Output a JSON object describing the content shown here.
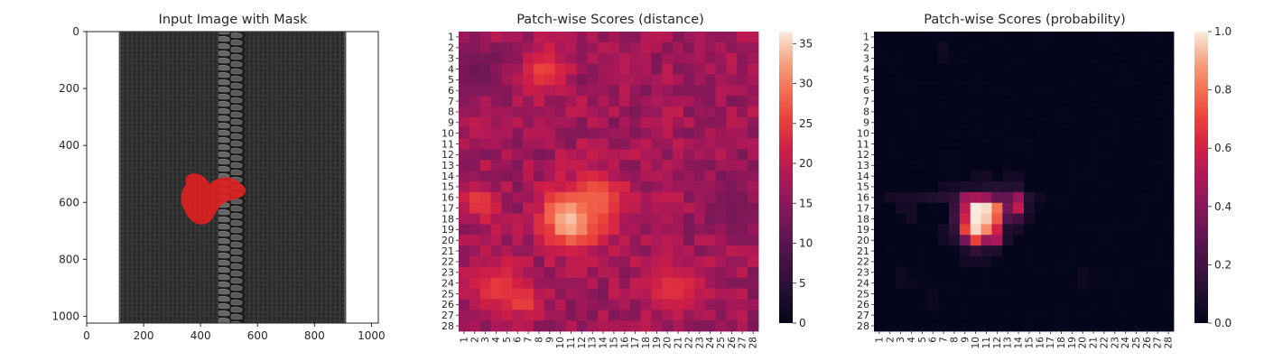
{
  "figure": {
    "panels": [
      {
        "title": "Input Image with Mask"
      },
      {
        "title": "Patch-wise Scores (distance)"
      },
      {
        "title": "Patch-wise Scores (probability)"
      }
    ]
  },
  "chart_data": [
    {
      "type": "image",
      "title": "Input Image with Mask",
      "xlabel": "",
      "ylabel": "",
      "xlim": [
        0,
        1024
      ],
      "ylim": [
        1024,
        0
      ],
      "x_ticks": [
        0,
        200,
        400,
        600,
        800,
        1000
      ],
      "y_ticks": [
        0,
        200,
        400,
        600,
        800,
        1000
      ],
      "image": {
        "content": "zipper on dark fabric, white background",
        "fabric_x_range": [
          115,
          910
        ],
        "zipper_x_range": [
          440,
          560
        ],
        "mask_color": "#e02020",
        "mask_approx_x_range": [
          335,
          560
        ],
        "mask_approx_y_range": [
          490,
          670
        ]
      }
    },
    {
      "type": "heatmap",
      "title": "Patch-wise Scores (distance)",
      "xlabel": "",
      "ylabel": "",
      "x_ticks": [
        "1",
        "2",
        "3",
        "4",
        "5",
        "6",
        "7",
        "8",
        "9",
        "10",
        "11",
        "12",
        "13",
        "14",
        "15",
        "16",
        "17",
        "18",
        "19",
        "20",
        "21",
        "22",
        "23",
        "24",
        "25",
        "26",
        "27",
        "28"
      ],
      "y_ticks": [
        "1",
        "2",
        "3",
        "4",
        "5",
        "6",
        "7",
        "8",
        "9",
        "10",
        "11",
        "12",
        "13",
        "14",
        "15",
        "16",
        "17",
        "18",
        "19",
        "20",
        "21",
        "22",
        "23",
        "24",
        "25",
        "26",
        "27",
        "28"
      ],
      "colormap": "rocket",
      "colorbar": {
        "range": [
          0,
          36.5
        ],
        "ticks": [
          "0",
          "5",
          "10",
          "15",
          "20",
          "25",
          "30",
          "35"
        ]
      },
      "grid_size": [
        28,
        28
      ],
      "baseline": 17,
      "hotspots": [
        {
          "cx": 11,
          "cy": 18,
          "r": 2.6,
          "value": 36.5,
          "note": "peak ~35-37 around rows 17-19, cols 10-11"
        },
        {
          "cx": 13.5,
          "cy": 16.3,
          "r": 2.6,
          "value": 28,
          "note": "rows 15-17, cols 12-15"
        },
        {
          "cx": 2.5,
          "cy": 16.5,
          "r": 1.6,
          "value": 26,
          "note": "left band rows 15-18"
        },
        {
          "cx": 8.5,
          "cy": 4,
          "r": 1.8,
          "value": 26,
          "note": "top rows 2-5, cols 6-10"
        },
        {
          "cx": 4,
          "cy": 24.5,
          "r": 2.3,
          "value": 25,
          "note": "bottom-left rows 23-26"
        },
        {
          "cx": 6.5,
          "cy": 25.8,
          "r": 1.2,
          "value": 27,
          "note": "rows 25-26, col 6-7"
        },
        {
          "cx": 20.5,
          "cy": 24.5,
          "r": 2.5,
          "value": 24,
          "note": "bottom-right rows 23-26, cols 19-22"
        },
        {
          "cx": 2,
          "cy": 4,
          "r": 2.4,
          "value": 12,
          "note": "darker top-left edge"
        },
        {
          "cx": 26,
          "cy": 17,
          "r": 2.5,
          "value": 13,
          "note": "darker right edge"
        }
      ]
    },
    {
      "type": "heatmap",
      "title": "Patch-wise Scores (probability)",
      "xlabel": "",
      "ylabel": "",
      "x_ticks": [
        "1",
        "2",
        "3",
        "4",
        "5",
        "6",
        "7",
        "8",
        "9",
        "10",
        "11",
        "12",
        "13",
        "14",
        "15",
        "16",
        "17",
        "18",
        "19",
        "20",
        "21",
        "22",
        "23",
        "24",
        "25",
        "26",
        "27",
        "28"
      ],
      "y_ticks": [
        "1",
        "2",
        "3",
        "4",
        "5",
        "6",
        "7",
        "8",
        "9",
        "10",
        "11",
        "12",
        "13",
        "14",
        "15",
        "16",
        "17",
        "18",
        "19",
        "20",
        "21",
        "22",
        "23",
        "24",
        "25",
        "26",
        "27",
        "28"
      ],
      "colormap": "rocket",
      "colorbar": {
        "range": [
          0,
          1.0
        ],
        "ticks": [
          "0.0",
          "0.2",
          "0.4",
          "0.6",
          "0.8",
          "1.0"
        ]
      },
      "grid_size": [
        28,
        28
      ],
      "cells": [
        {
          "row": 17,
          "col": 10,
          "value": 1.0
        },
        {
          "row": 17,
          "col": 11,
          "value": 0.98
        },
        {
          "row": 18,
          "col": 10,
          "value": 1.0
        },
        {
          "row": 18,
          "col": 11,
          "value": 0.95
        },
        {
          "row": 19,
          "col": 10,
          "value": 0.97
        },
        {
          "row": 17,
          "col": 12,
          "value": 0.8
        },
        {
          "row": 18,
          "col": 12,
          "value": 0.75
        },
        {
          "row": 19,
          "col": 11,
          "value": 0.85
        },
        {
          "row": 19,
          "col": 12,
          "value": 0.6
        },
        {
          "row": 16,
          "col": 10,
          "value": 0.5
        },
        {
          "row": 16,
          "col": 11,
          "value": 0.45
        },
        {
          "row": 16,
          "col": 12,
          "value": 0.3
        },
        {
          "row": 16,
          "col": 9,
          "value": 0.45
        },
        {
          "row": 17,
          "col": 9,
          "value": 0.55
        },
        {
          "row": 18,
          "col": 9,
          "value": 0.6
        },
        {
          "row": 19,
          "col": 9,
          "value": 0.7
        },
        {
          "row": 20,
          "col": 9,
          "value": 0.35
        },
        {
          "row": 20,
          "col": 10,
          "value": 0.7
        },
        {
          "row": 20,
          "col": 11,
          "value": 0.45
        },
        {
          "row": 20,
          "col": 12,
          "value": 0.5
        },
        {
          "row": 17,
          "col": 14,
          "value": 0.55
        },
        {
          "row": 16,
          "col": 14,
          "value": 0.45
        },
        {
          "row": 17,
          "col": 13,
          "value": 0.35
        },
        {
          "row": 16,
          "col": 13,
          "value": 0.3
        },
        {
          "row": 18,
          "col": 13,
          "value": 0.25
        },
        {
          "row": 18,
          "col": 14,
          "value": 0.2
        },
        {
          "row": 15,
          "col": 12,
          "value": 0.12
        },
        {
          "row": 15,
          "col": 13,
          "value": 0.1
        },
        {
          "row": 15,
          "col": 14,
          "value": 0.12
        },
        {
          "row": 15,
          "col": 10,
          "value": 0.08
        },
        {
          "row": 15,
          "col": 11,
          "value": 0.1
        },
        {
          "row": 15,
          "col": 9,
          "value": 0.08
        },
        {
          "row": 16,
          "col": 8,
          "value": 0.15
        },
        {
          "row": 17,
          "col": 8,
          "value": 0.18
        },
        {
          "row": 18,
          "col": 8,
          "value": 0.2
        },
        {
          "row": 19,
          "col": 8,
          "value": 0.15
        },
        {
          "row": 16,
          "col": 6,
          "value": 0.1
        },
        {
          "row": 16,
          "col": 7,
          "value": 0.12
        },
        {
          "row": 16,
          "col": 5,
          "value": 0.08
        },
        {
          "row": 16,
          "col": 4,
          "value": 0.07
        },
        {
          "row": 16,
          "col": 3,
          "value": 0.07
        },
        {
          "row": 16,
          "col": 2,
          "value": 0.06
        },
        {
          "row": 17,
          "col": 3,
          "value": 0.06
        },
        {
          "row": 17,
          "col": 4,
          "value": 0.05
        },
        {
          "row": 18,
          "col": 4,
          "value": 0.06
        },
        {
          "row": 15,
          "col": 8,
          "value": 0.06
        },
        {
          "row": 15,
          "col": 7,
          "value": 0.05
        },
        {
          "row": 14,
          "col": 10,
          "value": 0.05
        },
        {
          "row": 14,
          "col": 11,
          "value": 0.06
        },
        {
          "row": 14,
          "col": 13,
          "value": 0.05
        },
        {
          "row": 14,
          "col": 14,
          "value": 0.05
        },
        {
          "row": 16,
          "col": 15,
          "value": 0.1
        },
        {
          "row": 17,
          "col": 15,
          "value": 0.08
        },
        {
          "row": 16,
          "col": 16,
          "value": 0.05
        },
        {
          "row": 18,
          "col": 15,
          "value": 0.06
        },
        {
          "row": 19,
          "col": 13,
          "value": 0.1
        },
        {
          "row": 19,
          "col": 14,
          "value": 0.07
        },
        {
          "row": 20,
          "col": 13,
          "value": 0.08
        },
        {
          "row": 21,
          "col": 10,
          "value": 0.15
        },
        {
          "row": 21,
          "col": 11,
          "value": 0.1
        },
        {
          "row": 21,
          "col": 9,
          "value": 0.08
        },
        {
          "row": 21,
          "col": 12,
          "value": 0.08
        },
        {
          "row": 22,
          "col": 10,
          "value": 0.06
        },
        {
          "row": 22,
          "col": 11,
          "value": 0.06
        },
        {
          "row": 20,
          "col": 8,
          "value": 0.1
        },
        {
          "row": 20,
          "col": 7,
          "value": 0.05
        },
        {
          "row": 19,
          "col": 7,
          "value": 0.06
        },
        {
          "row": 22,
          "col": 9,
          "value": 0.05
        },
        {
          "row": 23,
          "col": 3,
          "value": 0.04
        },
        {
          "row": 24,
          "col": 3,
          "value": 0.04
        },
        {
          "row": 24,
          "col": 4,
          "value": 0.03
        },
        {
          "row": 23,
          "col": 20,
          "value": 0.04
        },
        {
          "row": 24,
          "col": 20,
          "value": 0.04
        },
        {
          "row": 2,
          "col": 7,
          "value": 0.05
        },
        {
          "row": 3,
          "col": 7,
          "value": 0.04
        },
        {
          "row": 25,
          "col": 6,
          "value": 0.03
        },
        {
          "row": 26,
          "col": 6,
          "value": 0.03
        }
      ]
    }
  ]
}
